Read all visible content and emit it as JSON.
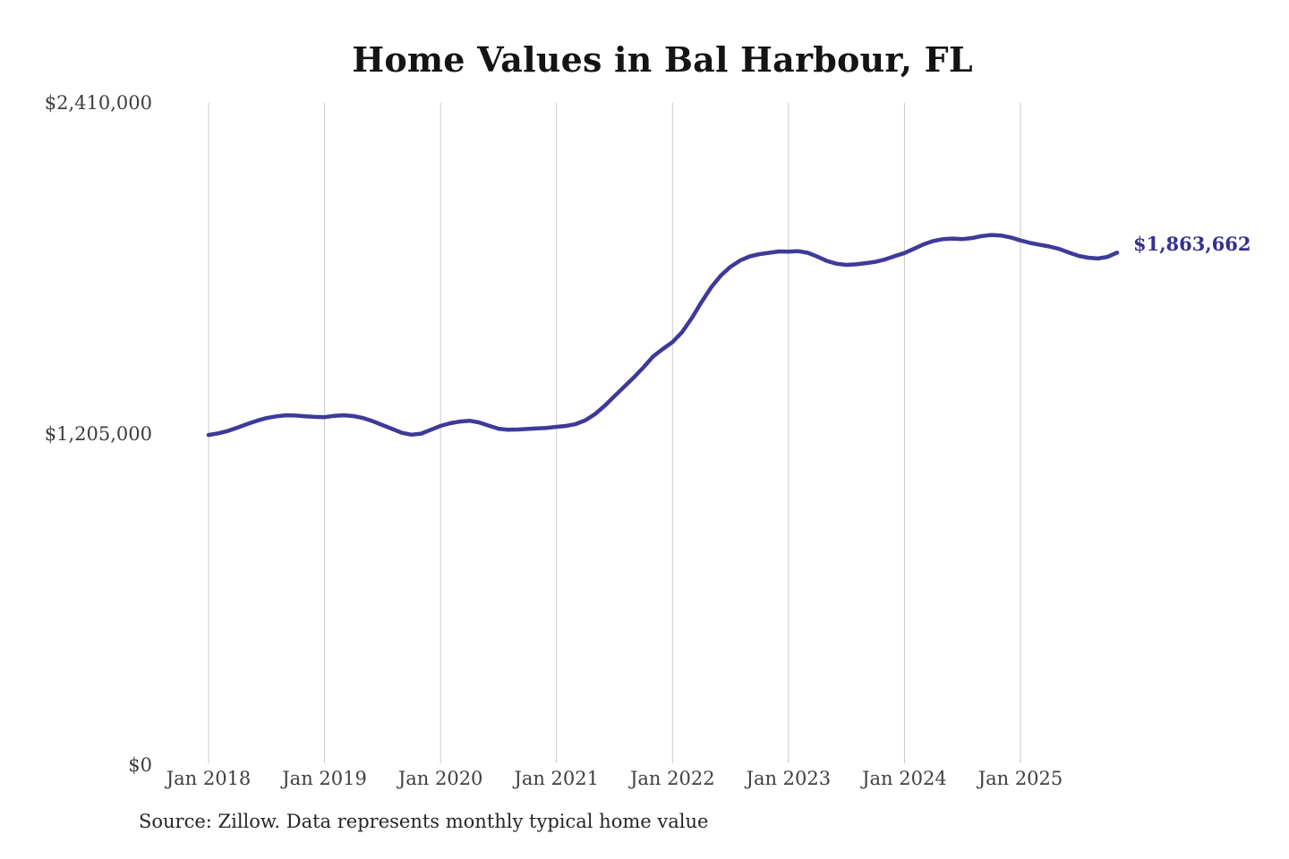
{
  "title": "Home Values in Bal Harbour, FL",
  "source_note": "Source: Zillow. Data represents monthly typical home value",
  "end_label": "$1,863,662",
  "chart_data": {
    "type": "line",
    "title": "Home Values in Bal Harbour, FL",
    "xlabel": "",
    "ylabel": "",
    "ylim": [
      0,
      2410000
    ],
    "grid": "vertical-only",
    "legend": "none",
    "line_color": "#3e3a99",
    "grid_color": "#c9c9c9",
    "x_tick_labels": [
      "Jan 2018",
      "Jan 2019",
      "Jan 2020",
      "Jan 2021",
      "Jan 2022",
      "Jan 2023",
      "Jan 2024",
      "Jan 2025"
    ],
    "y_tick_labels": [
      "$0",
      "$1,205,000",
      "$2,410,000"
    ],
    "x_start": "Jan 2018",
    "x_end": "Nov 2025",
    "frequency": "monthly",
    "final_value": 1863662,
    "final_value_label": "$1,863,662",
    "series": [
      {
        "name": "Typical home value",
        "values": [
          1198000,
          1204000,
          1213000,
          1225000,
          1238000,
          1250000,
          1260000,
          1266000,
          1270000,
          1269000,
          1266000,
          1264000,
          1263000,
          1268000,
          1270000,
          1267000,
          1260000,
          1248000,
          1234000,
          1220000,
          1206000,
          1199000,
          1203000,
          1217000,
          1231000,
          1241000,
          1247000,
          1250000,
          1244000,
          1232000,
          1221000,
          1217000,
          1218000,
          1220000,
          1222000,
          1224000,
          1228000,
          1231000,
          1238000,
          1252000,
          1275000,
          1305000,
          1340000,
          1374000,
          1408000,
          1445000,
          1485000,
          1512000,
          1537000,
          1574000,
          1625000,
          1683000,
          1737000,
          1780000,
          1812000,
          1835000,
          1850000,
          1858000,
          1863000,
          1868000,
          1867000,
          1869000,
          1863000,
          1849000,
          1833000,
          1823000,
          1819000,
          1821000,
          1825000,
          1830000,
          1839000,
          1851000,
          1862000,
          1878000,
          1894000,
          1906000,
          1913000,
          1915000,
          1913000,
          1917000,
          1924000,
          1928000,
          1926000,
          1919000,
          1908000,
          1899000,
          1892000,
          1886000,
          1877000,
          1864000,
          1852000,
          1845000,
          1842000,
          1848000,
          1863662
        ]
      }
    ]
  }
}
